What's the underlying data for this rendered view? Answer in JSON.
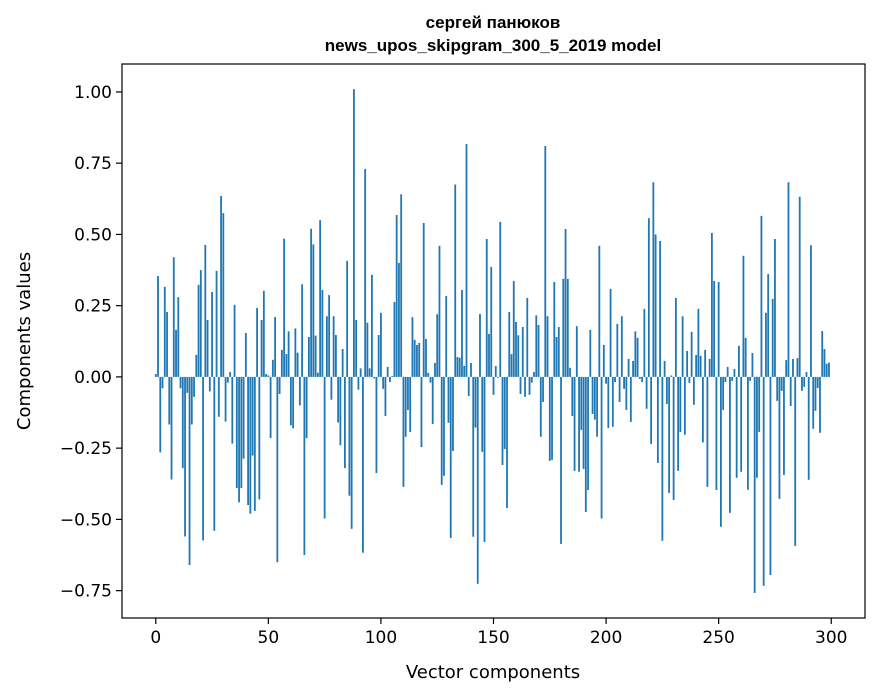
{
  "chart_data": {
    "type": "bar",
    "title_line1": "сергей панюков",
    "title_line2": "news_upos_skipgram_300_5_2019 model",
    "xlabel": "Vector components",
    "ylabel": "Components values",
    "xlim": [
      -15,
      315
    ],
    "ylim": [
      -0.846,
      1.098
    ],
    "xticks": [
      0,
      50,
      100,
      150,
      200,
      250,
      300
    ],
    "xtick_labels": [
      "0",
      "50",
      "100",
      "150",
      "200",
      "250",
      "300"
    ],
    "yticks": [
      1.0,
      0.75,
      0.5,
      0.25,
      0.0,
      -0.25,
      -0.5,
      -0.75
    ],
    "ytick_labels": [
      "1.00",
      "0.75",
      "0.50",
      "0.25",
      "0.00",
      "−0.25",
      "−0.50",
      "−0.75"
    ],
    "grid": false,
    "bar_color": "#1f77b4",
    "values": [
      0.01,
      0.354,
      -0.265,
      -0.04,
      0.316,
      0.228,
      -0.167,
      -0.36,
      0.42,
      0.165,
      0.28,
      -0.04,
      -0.32,
      -0.56,
      -0.056,
      -0.66,
      -0.167,
      -0.07,
      0.077,
      0.323,
      0.375,
      -0.574,
      0.463,
      0.2,
      -0.051,
      0.298,
      -0.54,
      0.372,
      -0.14,
      0.635,
      0.575,
      -0.157,
      -0.02,
      0.017,
      -0.234,
      0.253,
      -0.39,
      -0.44,
      -0.39,
      -0.287,
      0.154,
      -0.45,
      -0.48,
      -0.276,
      -0.47,
      0.242,
      -0.43,
      0.2,
      0.302,
      0.01,
      0.005,
      -0.215,
      0.06,
      0.21,
      -0.65,
      -0.06,
      0.095,
      0.485,
      0.08,
      0.16,
      -0.17,
      -0.18,
      0.17,
      0.085,
      -0.1,
      0.325,
      -0.625,
      -0.215,
      0.14,
      0.52,
      0.465,
      0.145,
      0.015,
      0.55,
      0.305,
      -0.497,
      0.213,
      0.287,
      -0.08,
      0.213,
      0.147,
      -0.16,
      -0.24,
      0.098,
      -0.32,
      0.407,
      -0.417,
      -0.533,
      1.01,
      0.2,
      -0.045,
      0.03,
      -0.617,
      0.73,
      0.19,
      0.03,
      0.358,
      -0.005,
      -0.337,
      0.147,
      0.225,
      -0.042,
      -0.137,
      0.035,
      -0.018,
      0.003,
      0.263,
      0.568,
      0.4,
      0.641,
      -0.386,
      -0.21,
      -0.116,
      -0.193,
      0.21,
      0.13,
      0.112,
      0.119,
      -0.246,
      0.54,
      0.133,
      0.014,
      -0.02,
      -0.165,
      0.049,
      0.22,
      0.46,
      -0.379,
      -0.347,
      0.284,
      -0.161,
      -0.565,
      -0.26,
      0.675,
      0.07,
      0.067,
      0.305,
      0.039,
      0.817,
      -0.067,
      0.049,
      -0.561,
      -0.178,
      -0.726,
      0.221,
      -0.263,
      -0.579,
      0.484,
      0.151,
      0.386,
      -0.063,
      0.038,
      -0.003,
      0.544,
      -0.309,
      -0.253,
      -0.46,
      0.228,
      0.08,
      0.337,
      0.193,
      0.146,
      -0.06,
      0.175,
      -0.07,
      0.277,
      -0.063,
      -0.02,
      0.017,
      0.216,
      0.182,
      -0.21,
      -0.088,
      0.81,
      0.213,
      -0.295,
      -0.291,
      0.333,
      0.14,
      0.175,
      -0.586,
      0.344,
      0.519,
      0.344,
      0.032,
      -0.137,
      -0.33,
      0.178,
      -0.333,
      -0.186,
      -0.323,
      -0.474,
      -0.397,
      0.165,
      -0.13,
      -0.15,
      -0.21,
      0.46,
      -0.497,
      0.112,
      -0.024,
      -0.179,
      0.309,
      -0.175,
      -0.018,
      0.186,
      -0.088,
      0.213,
      -0.042,
      -0.116,
      0.063,
      -0.158,
      0.056,
      0.16,
      0.137,
      -0.007,
      -0.018,
      0.239,
      -0.112,
      0.557,
      -0.235,
      0.683,
      0.5,
      -0.302,
      0.477,
      -0.575,
      0.056,
      -0.095,
      -0.407,
      0.005,
      -0.432,
      0.277,
      -0.33,
      -0.193,
      0.213,
      -0.203,
      0.091,
      -0.021,
      0.158,
      -0.098,
      0.077,
      0.239,
      0.074,
      -0.23,
      0.095,
      -0.386,
      0.063,
      0.505,
      0.337,
      -0.397,
      0.333,
      -0.526,
      -0.116,
      -0.018,
      0.035,
      -0.477,
      -0.014,
      0.028,
      -0.354,
      0.109,
      -0.333,
      0.425,
      0.137,
      -0.396,
      -0.014,
      0.084,
      -0.758,
      -0.354,
      -0.193,
      0.565,
      -0.733,
      0.225,
      0.361,
      -0.695,
      0.274,
      0.484,
      -0.084,
      -0.428,
      -0.049,
      -0.344,
      0.059,
      0.683,
      -0.102,
      0.063,
      -0.593,
      0.066,
      0.632,
      -0.049,
      -0.035,
      0.017,
      -0.361,
      0.462,
      -0.182,
      -0.119,
      -0.039,
      -0.196,
      0.161,
      0.098,
      0.046,
      0.05
    ]
  }
}
